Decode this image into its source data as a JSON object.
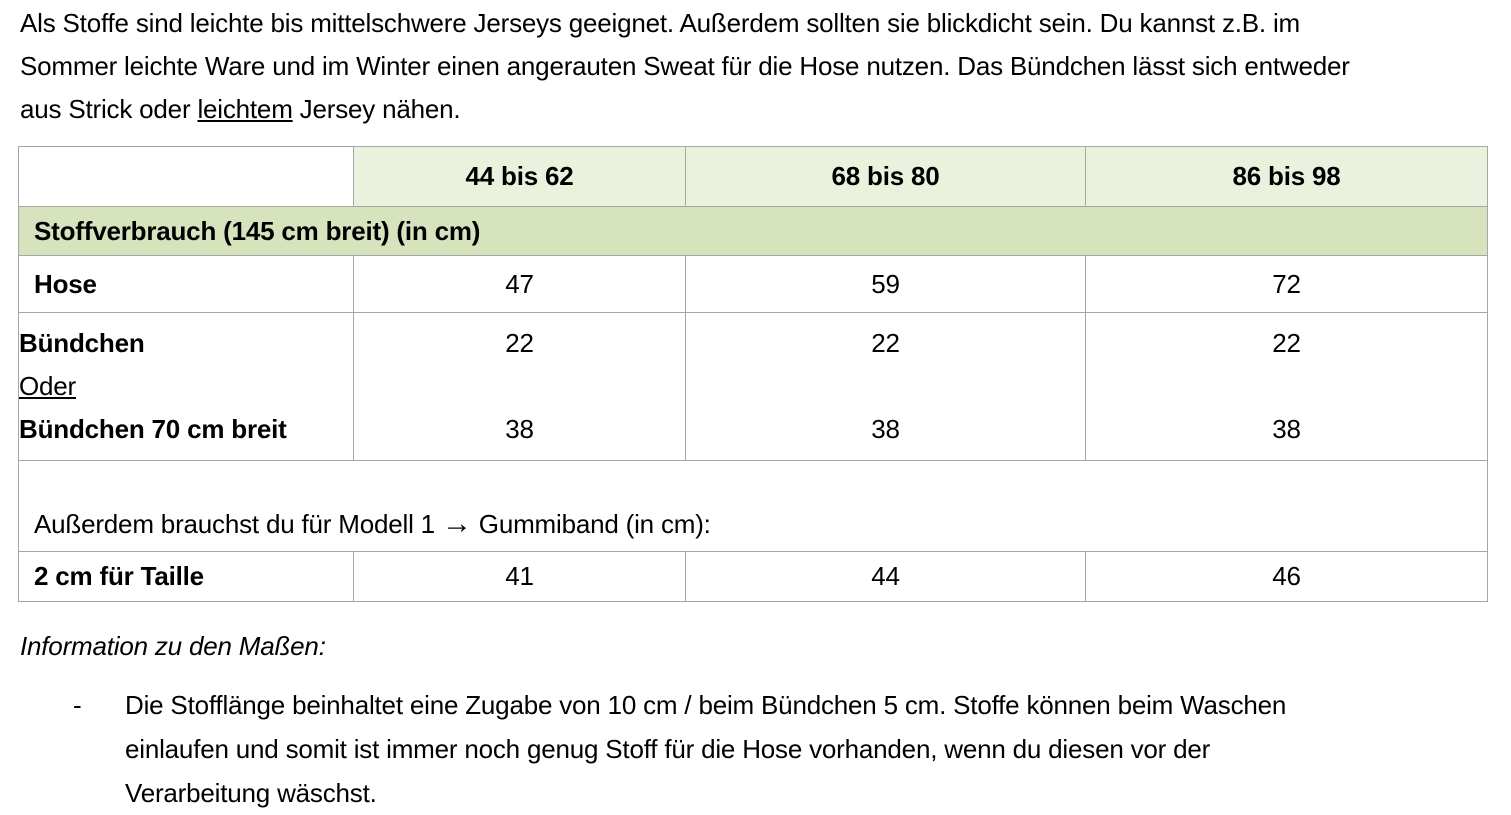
{
  "intro": {
    "text_before_underline": "Als Stoffe sind leichte bis mittelschwere Jerseys geeignet. Außerdem sollten sie blickdicht sein. Du kannst z.B. im Sommer leichte Ware und im Winter einen angerauten Sweat für die Hose nutzen. Das Bündchen lässt sich entweder aus Strick oder ",
    "underlined_word": "leichtem",
    "text_after_underline": " Jersey nähen."
  },
  "table": {
    "col_headers": [
      "44 bis 62",
      "68 bis 80",
      "86 bis 98"
    ],
    "section_header": "Stoffverbrauch (145 cm breit) (in cm)",
    "hose": {
      "label": "Hose",
      "values": [
        "47",
        "59",
        "72"
      ]
    },
    "buendchen": {
      "line1_label": "Bündchen",
      "line2_label": "Oder",
      "line3_label": "Bündchen 70 cm breit",
      "line1_values": [
        "22",
        "22",
        "22"
      ],
      "line3_values": [
        "38",
        "38",
        "38"
      ]
    },
    "note": {
      "before_arrow": "Außerdem brauchst du für Modell 1 ",
      "arrow": "→",
      "after_arrow": " Gummiband (in cm):"
    },
    "taille": {
      "label": "2 cm für Taille",
      "values": [
        "41",
        "44",
        "46"
      ]
    }
  },
  "info": {
    "heading": "Information zu den Maßen:",
    "bullet_marker": "-",
    "bullet_text": "Die Stofflänge beinhaltet eine Zugabe von 10 cm / beim Bündchen 5 cm. Stoffe können beim Waschen einlaufen und somit ist immer noch genug Stoff für die Hose vorhanden, wenn du diesen vor der Verarbeitung wäschst."
  },
  "colors": {
    "header_fill": "#EAF1DD",
    "band_fill": "#D6E3BC",
    "border": "#A6A6A6"
  }
}
